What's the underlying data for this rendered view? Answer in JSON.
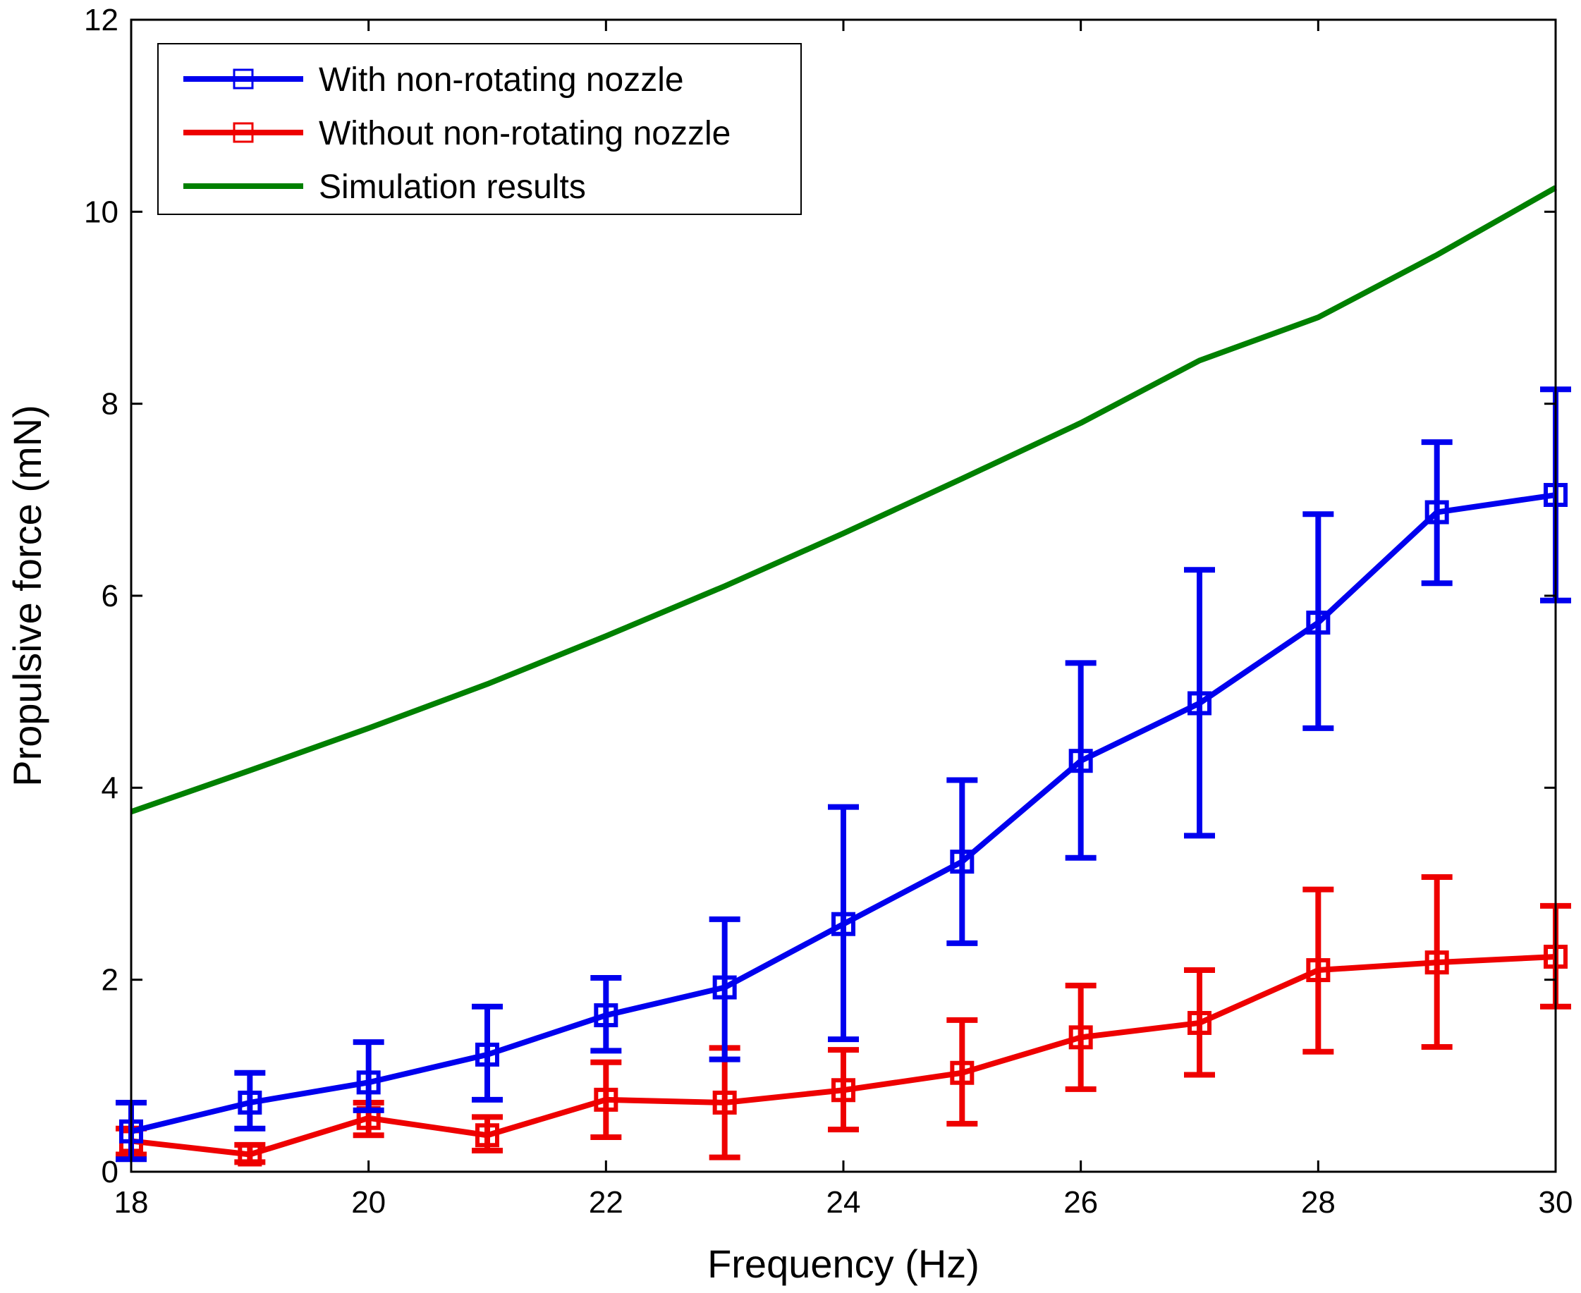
{
  "chart_data": {
    "type": "line",
    "title": "",
    "xlabel": "Frequency (Hz)",
    "ylabel": "Propulsive force (mN)",
    "xlim": [
      18,
      30
    ],
    "ylim": [
      0,
      12
    ],
    "xticks": [
      18,
      20,
      22,
      24,
      26,
      28,
      30
    ],
    "yticks": [
      0,
      2,
      4,
      6,
      8,
      10,
      12
    ],
    "grid": false,
    "legend_position": "top-left",
    "series": [
      {
        "name": "With non-rotating nozzle",
        "color": "#0000ee",
        "marker": "square",
        "x": [
          18,
          19,
          20,
          21,
          22,
          23,
          24,
          25,
          26,
          27,
          28,
          29,
          30
        ],
        "y": [
          0.42,
          0.72,
          0.93,
          1.22,
          1.63,
          1.92,
          2.58,
          3.23,
          4.28,
          4.88,
          5.72,
          6.87,
          7.05
        ],
        "err_low": [
          0.13,
          0.45,
          0.64,
          0.75,
          1.26,
          1.17,
          1.38,
          2.38,
          3.27,
          3.5,
          4.62,
          6.13,
          5.95
        ],
        "err_high": [
          0.72,
          1.03,
          1.35,
          1.72,
          2.02,
          2.63,
          3.8,
          4.08,
          5.3,
          6.27,
          6.85,
          7.6,
          8.15
        ]
      },
      {
        "name": "Without non-rotating nozzle",
        "color": "#ee0000",
        "marker": "square",
        "x": [
          18,
          19,
          20,
          21,
          22,
          23,
          24,
          25,
          26,
          27,
          28,
          29,
          30
        ],
        "y": [
          0.32,
          0.18,
          0.56,
          0.38,
          0.75,
          0.72,
          0.85,
          1.03,
          1.4,
          1.55,
          2.1,
          2.18,
          2.24
        ],
        "err_low": [
          0.18,
          0.1,
          0.38,
          0.22,
          0.36,
          0.15,
          0.44,
          0.5,
          0.86,
          1.01,
          1.25,
          1.3,
          1.72
        ],
        "err_high": [
          0.45,
          0.28,
          0.72,
          0.57,
          1.14,
          1.29,
          1.27,
          1.58,
          1.94,
          2.1,
          2.94,
          3.07,
          2.77
        ]
      },
      {
        "name": "Simulation results",
        "color": "#008000",
        "marker": "none",
        "x": [
          18,
          19,
          20,
          21,
          22,
          23,
          24,
          25,
          26,
          27,
          28,
          29,
          30
        ],
        "y": [
          3.75,
          4.18,
          4.62,
          5.08,
          5.58,
          6.1,
          6.65,
          7.22,
          7.8,
          8.45,
          8.9,
          9.55,
          10.25
        ]
      }
    ]
  }
}
